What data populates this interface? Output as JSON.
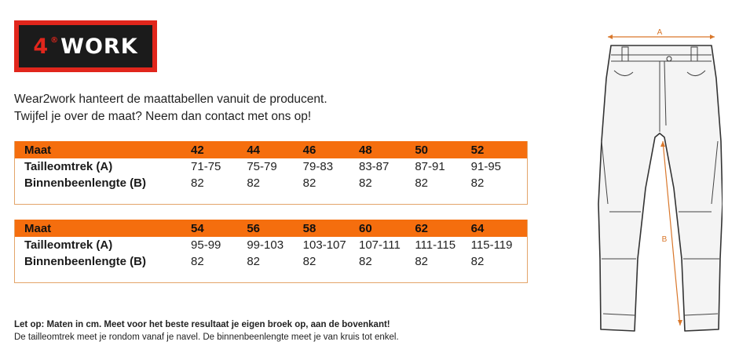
{
  "logo": {
    "text_four": "4",
    "text_rest": "WORK",
    "registered": "®"
  },
  "intro": {
    "line1": "Wear2work hanteert de maattabellen vanuit de producent.",
    "line2": "Twijfel je over de maat? Neem dan contact met ons op!"
  },
  "table1": {
    "header_label": "Maat",
    "sizes": [
      "42",
      "44",
      "46",
      "48",
      "50",
      "52"
    ],
    "rows": [
      {
        "label": "Tailleomtrek (A)",
        "values": [
          "71-75",
          "75-79",
          "79-83",
          "83-87",
          "87-91",
          "91-95"
        ]
      },
      {
        "label": "Binnenbeenlengte (B)",
        "values": [
          "82",
          "82",
          "82",
          "82",
          "82",
          "82"
        ]
      }
    ]
  },
  "table2": {
    "header_label": "Maat",
    "sizes": [
      "54",
      "56",
      "58",
      "60",
      "62",
      "64"
    ],
    "rows": [
      {
        "label": "Tailleomtrek (A)",
        "values": [
          "95-99",
          "99-103",
          "103-107",
          "107-111",
          "111-115",
          "115-119"
        ]
      },
      {
        "label": "Binnenbeenlengte (B)",
        "values": [
          "82",
          "82",
          "82",
          "82",
          "82",
          "82"
        ]
      }
    ]
  },
  "footnote": {
    "bold": "Let op: Maten in cm. Meet voor het beste resultaat je eigen broek op, aan de bovenkant!",
    "normal": "De tailleomtrek meet je rondom vanaf je navel. De binnenbeenlengte meet je van kruis tot enkel."
  },
  "diagram": {
    "label_a": "A",
    "label_b": "B"
  },
  "colors": {
    "accent": "#f56e0e",
    "logo_red": "#e1261c",
    "logo_dark": "#1b1b1b",
    "measure_line": "#d9772b"
  }
}
